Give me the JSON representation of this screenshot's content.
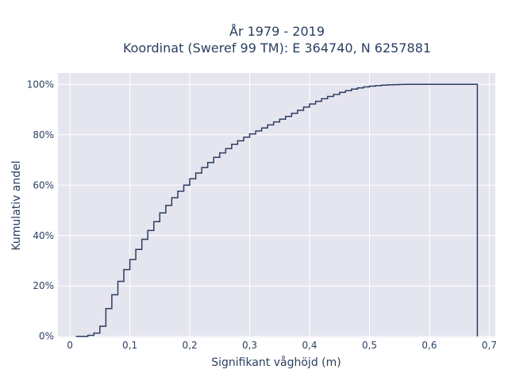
{
  "chart_data": {
    "type": "line",
    "step": true,
    "title_line1": "År 1979 - 2019",
    "title_line2": "Koordinat (Sweref 99 TM): E 364740, N 6257881",
    "xlabel": "Signifikant våghöjd (m)",
    "ylabel": "Kumulativ andel",
    "xlim": [
      -0.02,
      0.71
    ],
    "ylim": [
      -0.004,
      1.045
    ],
    "x_ticks": [
      0,
      0.1,
      0.2,
      0.3,
      0.4,
      0.5,
      0.6,
      0.7
    ],
    "x_tick_labels": [
      "0",
      "0,1",
      "0,2",
      "0,3",
      "0,4",
      "0,5",
      "0,6",
      "0,7"
    ],
    "y_ticks": [
      0,
      0.2,
      0.4,
      0.6,
      0.8,
      1.0
    ],
    "y_tick_labels": [
      "0%",
      "20%",
      "40%",
      "60%",
      "80%",
      "100%"
    ],
    "grid": true,
    "colors": {
      "plot_background": "#e5e5f0",
      "grid": "#ffffff",
      "line": "#2a3f5f"
    },
    "series": [
      {
        "x": [
          0.01,
          0.03,
          0.04,
          0.05,
          0.06,
          0.07,
          0.08,
          0.09,
          0.1,
          0.11,
          0.12,
          0.13,
          0.14,
          0.15,
          0.16,
          0.17,
          0.18,
          0.19,
          0.2,
          0.21,
          0.22,
          0.23,
          0.24,
          0.25,
          0.26,
          0.27,
          0.28,
          0.29,
          0.3,
          0.31,
          0.32,
          0.33,
          0.34,
          0.35,
          0.36,
          0.37,
          0.38,
          0.39,
          0.4,
          0.41,
          0.42,
          0.43,
          0.44,
          0.45,
          0.46,
          0.47,
          0.48,
          0.49,
          0.5,
          0.51,
          0.52,
          0.53,
          0.54,
          0.55,
          0.56,
          0.57,
          0.68,
          0.68
        ],
        "y": [
          0.0,
          0.004,
          0.013,
          0.04,
          0.11,
          0.165,
          0.218,
          0.265,
          0.305,
          0.345,
          0.385,
          0.42,
          0.455,
          0.49,
          0.52,
          0.55,
          0.576,
          0.6,
          0.625,
          0.648,
          0.67,
          0.69,
          0.71,
          0.728,
          0.745,
          0.762,
          0.776,
          0.79,
          0.803,
          0.815,
          0.827,
          0.839,
          0.851,
          0.862,
          0.873,
          0.885,
          0.897,
          0.91,
          0.922,
          0.933,
          0.943,
          0.952,
          0.96,
          0.968,
          0.975,
          0.981,
          0.986,
          0.99,
          0.993,
          0.995,
          0.997,
          0.998,
          0.999,
          0.9995,
          1.0,
          1.0,
          1.0,
          0.0
        ]
      }
    ]
  }
}
